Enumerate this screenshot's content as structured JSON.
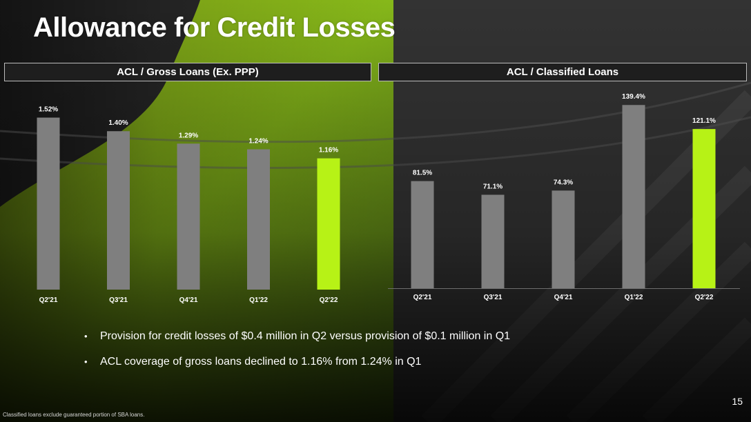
{
  "title": "Allowance for Credit Losses",
  "colors": {
    "bar": "#7f7f7f",
    "highlight": "#b7f216",
    "background": "#2a2a2a",
    "accent_green": "#8fc21a"
  },
  "chart_data": [
    {
      "type": "bar",
      "title": "ACL / Gross Loans (Ex. PPP)",
      "categories": [
        "Q2'21",
        "Q3'21",
        "Q4'21",
        "Q1'22",
        "Q2'22"
      ],
      "values": [
        1.52,
        1.4,
        1.29,
        1.24,
        1.16
      ],
      "labels": [
        "1.52%",
        "1.40%",
        "1.29%",
        "1.24%",
        "1.16%"
      ],
      "highlight_index": 4,
      "ylim": [
        0,
        1.7
      ],
      "grid": false
    },
    {
      "type": "bar",
      "title": "ACL / Classified Loans",
      "categories": [
        "Q2'21",
        "Q3'21",
        "Q4'21",
        "Q1'22",
        "Q2'22"
      ],
      "values": [
        81.5,
        71.1,
        74.3,
        139.4,
        121.1
      ],
      "labels": [
        "81.5%",
        "71.1%",
        "74.3%",
        "139.4%",
        "121.1%"
      ],
      "highlight_index": 4,
      "ylim": [
        0,
        145.3
      ],
      "grid": false
    }
  ],
  "bullets": [
    "Provision for credit losses of $0.4 million in Q2 versus provision of $0.1 million in Q1",
    "ACL coverage of gross loans declined to 1.16% from 1.24% in Q1"
  ],
  "bullet_glyph": "•",
  "footnote": "Classified loans exclude guaranteed portion of SBA loans.",
  "page_number": "15"
}
